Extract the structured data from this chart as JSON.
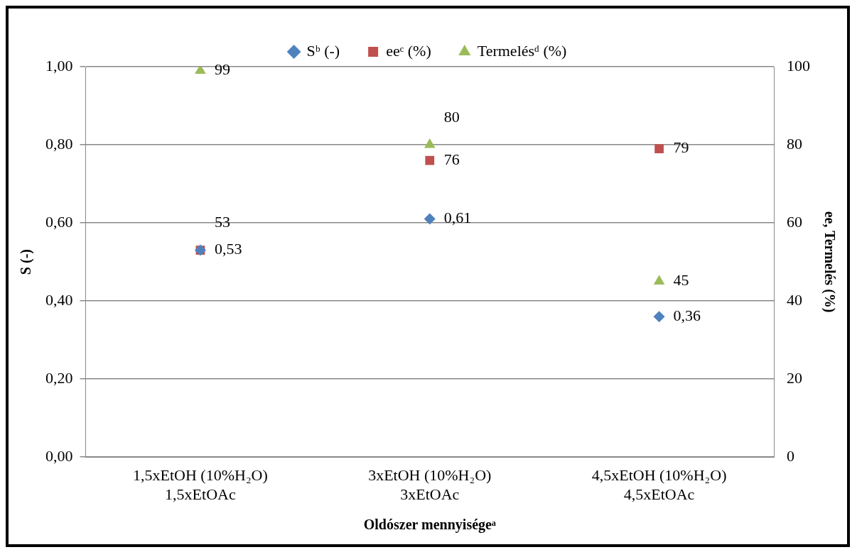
{
  "chart_data": {
    "type": "scatter",
    "xlabel": "Oldószer mennyiségeᵃ",
    "ylabel": "S (-)",
    "y2label": "ee, Termelés (%)",
    "categories": [
      "1,5xEtOH (10%H₂O)\n1,5xEtOAc",
      "3xEtOH (10%H₂O)\n3xEtOAc",
      "4,5xEtOH (10%H₂O)\n4,5xEtOAc"
    ],
    "series": [
      {
        "name": "Sᵇ (-)",
        "color": "#4f81bd",
        "marker": "diamond",
        "values": [
          0.53,
          0.61,
          0.36
        ],
        "value_labels": [
          "0,53",
          "0,61",
          "0,36"
        ]
      },
      {
        "name": "eeᶜ (%)",
        "color": "#c0504d",
        "marker": "square",
        "axis": "y2",
        "values": [
          53,
          76,
          79
        ],
        "value_labels": [
          "53",
          "76",
          "79"
        ]
      },
      {
        "name": "Termelésᵈ (%)",
        "color": "#9bbb59",
        "marker": "triangle",
        "axis": "y2",
        "values": [
          99,
          80,
          45
        ],
        "value_labels": [
          "99",
          "80",
          "45"
        ]
      }
    ],
    "ylim": [
      0,
      1
    ],
    "yticks": [
      {
        "value": 0,
        "label": "0,00"
      },
      {
        "value": 0.2,
        "label": "0,20"
      },
      {
        "value": 0.4,
        "label": "0,40"
      },
      {
        "value": 0.6,
        "label": "0,60"
      },
      {
        "value": 0.8,
        "label": "0,80"
      },
      {
        "value": 1,
        "label": "1,00"
      }
    ],
    "y2lim": [
      0,
      100
    ],
    "y2ticks": [
      0,
      20,
      40,
      60,
      80,
      100
    ],
    "grid": "y",
    "legend": "top"
  }
}
